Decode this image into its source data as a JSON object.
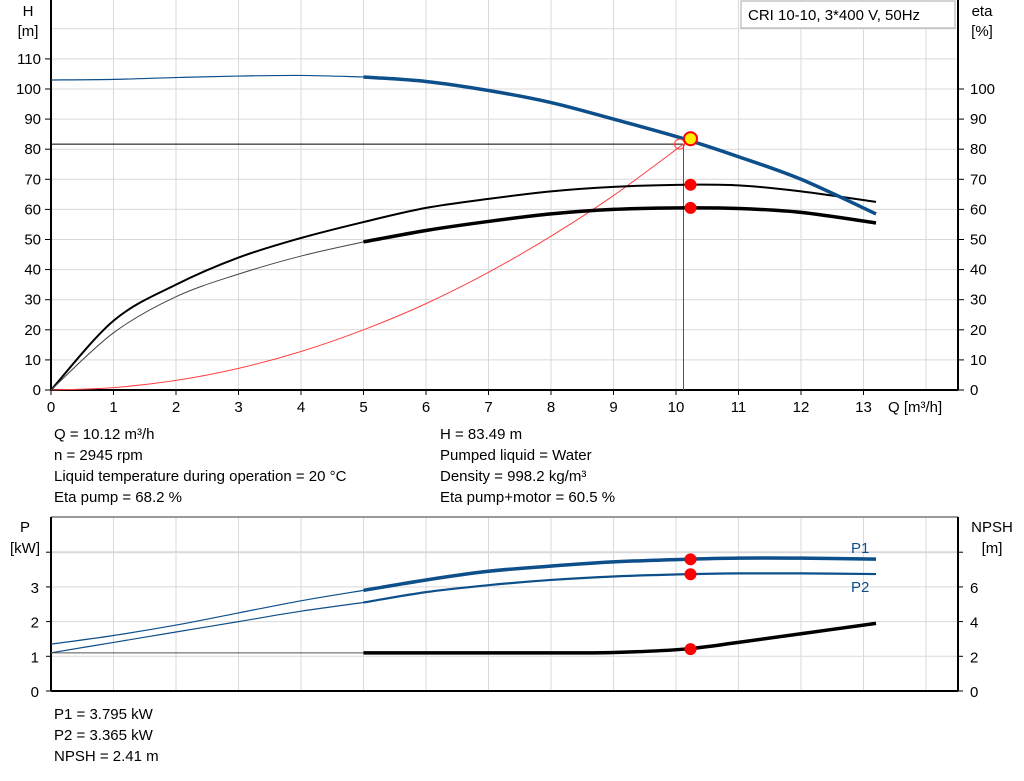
{
  "chart_data": [
    {
      "type": "line",
      "legend_box": "CRI 10-10, 3*400 V, 50Hz",
      "xlabel": "Q [m³/h]",
      "ylabel_left": [
        "H",
        "[m]"
      ],
      "ylabel_right": [
        "eta",
        "[%]"
      ],
      "xlim": [
        0,
        14.5
      ],
      "ylim": [
        0,
        130
      ],
      "x_ticks": [
        0,
        1,
        2,
        3,
        4,
        5,
        6,
        7,
        8,
        9,
        10,
        11,
        12,
        13
      ],
      "y_ticks_left": [
        0,
        10,
        20,
        30,
        40,
        50,
        60,
        70,
        80,
        90,
        100,
        110
      ],
      "y_ticks_right": [
        0,
        10,
        20,
        30,
        40,
        50,
        60,
        70,
        80,
        90,
        100
      ],
      "grid": true,
      "colors": {
        "head": "#0d4f8b",
        "efficiency": "#000000",
        "system": "#ff4040",
        "marker": "#ff0000",
        "duty_marker_fill": "#ffee00"
      },
      "series": [
        {
          "id": "head",
          "axis": "H",
          "x": [
            0,
            1,
            2,
            3,
            4,
            5,
            6,
            7,
            8,
            9,
            10.12,
            11,
            12,
            13.2
          ],
          "y": [
            103,
            103.2,
            103.8,
            104.3,
            104.5,
            104,
            102.5,
            99.5,
            95.5,
            90,
            83.5,
            77.5,
            70,
            58.5
          ],
          "thin_until": 5
        },
        {
          "id": "eta-pump",
          "axis": "eta",
          "x": [
            0,
            1,
            2,
            3,
            4,
            5,
            6,
            7,
            8,
            9,
            10.12,
            11,
            12,
            13.2
          ],
          "y": [
            0,
            23,
            35,
            44,
            50.5,
            55.8,
            60.5,
            63.5,
            66,
            67.5,
            68.2,
            68,
            66,
            62.5
          ],
          "thin": true
        },
        {
          "id": "eta-pump-motor",
          "axis": "eta",
          "x": [
            0,
            1,
            2,
            3,
            4,
            5,
            6,
            7,
            8,
            9,
            10.12,
            11,
            12,
            13.2
          ],
          "y": [
            0,
            19,
            31,
            38.5,
            44.5,
            49.2,
            53,
            56,
            58.5,
            60,
            60.5,
            60.3,
            59,
            55.5
          ],
          "thin_until": 5
        },
        {
          "id": "system-curve",
          "axis": "H",
          "x": [
            0,
            1,
            2,
            3,
            4,
            5,
            6,
            7,
            8,
            9,
            10.12
          ],
          "y": [
            0,
            0.8,
            3.2,
            7.2,
            12.8,
            20,
            28.7,
            39.1,
            51.1,
            64.6,
            81.7
          ]
        }
      ],
      "duty_point": {
        "Q": 10.12,
        "H": 83.49,
        "system_H": 81.7
      },
      "markers": [
        {
          "Q": 10.12,
          "eta": 68.2
        },
        {
          "Q": 10.12,
          "eta": 60.5
        }
      ]
    },
    {
      "type": "line",
      "xlim": [
        0,
        14.5
      ],
      "ylim": [
        0,
        5
      ],
      "ylabel_left": [
        "P",
        "[kW]"
      ],
      "ylabel_right": [
        "NPSH",
        "[m]"
      ],
      "y_ticks_left": [
        0,
        1,
        2,
        3
      ],
      "y_ticks_right": [
        0,
        2,
        4,
        6
      ],
      "grid": true,
      "series": [
        {
          "id": "P1",
          "name": "P1",
          "unit": "kW",
          "x": [
            0,
            1,
            2,
            3,
            4,
            5,
            6,
            7,
            8,
            9,
            10.12,
            11,
            12,
            13.2
          ],
          "y": [
            1.35,
            1.6,
            1.9,
            2.25,
            2.6,
            2.9,
            3.2,
            3.45,
            3.6,
            3.72,
            3.795,
            3.83,
            3.83,
            3.8
          ],
          "thin_until": 5
        },
        {
          "id": "P2",
          "name": "P2",
          "unit": "kW",
          "x": [
            0,
            1,
            2,
            3,
            4,
            5,
            6,
            7,
            8,
            9,
            10.12,
            11,
            12,
            13.2
          ],
          "y": [
            1.1,
            1.4,
            1.7,
            2.0,
            2.3,
            2.55,
            2.85,
            3.05,
            3.2,
            3.3,
            3.365,
            3.39,
            3.39,
            3.37
          ],
          "thin_until": 5
        },
        {
          "id": "NPSH",
          "unit": "m",
          "x": [
            0,
            1,
            2,
            3,
            4,
            5,
            6,
            7,
            8,
            9,
            10.12,
            11,
            12,
            13.2
          ],
          "y": [
            2.2,
            2.2,
            2.2,
            2.2,
            2.2,
            2.2,
            2.2,
            2.2,
            2.2,
            2.22,
            2.41,
            2.8,
            3.3,
            3.9
          ],
          "thin_until": 5
        }
      ],
      "markers": [
        {
          "Q": 10.12,
          "P": 3.795
        },
        {
          "Q": 10.12,
          "P": 3.365
        },
        {
          "Q": 10.12,
          "NPSH": 2.41
        }
      ]
    }
  ],
  "info_top_left": [
    "Q = 10.12 m³/h",
    "n = 2945 rpm",
    "Liquid temperature during operation = 20 °C",
    "Eta pump = 68.2 %"
  ],
  "info_top_right": [
    "H = 83.49 m",
    "Pumped liquid = Water",
    "Density = 998.2 kg/m³",
    "Eta pump+motor = 60.5 %"
  ],
  "info_bottom": [
    "P1 = 3.795 kW",
    "P2 = 3.365 kW",
    "NPSH = 2.41 m"
  ]
}
